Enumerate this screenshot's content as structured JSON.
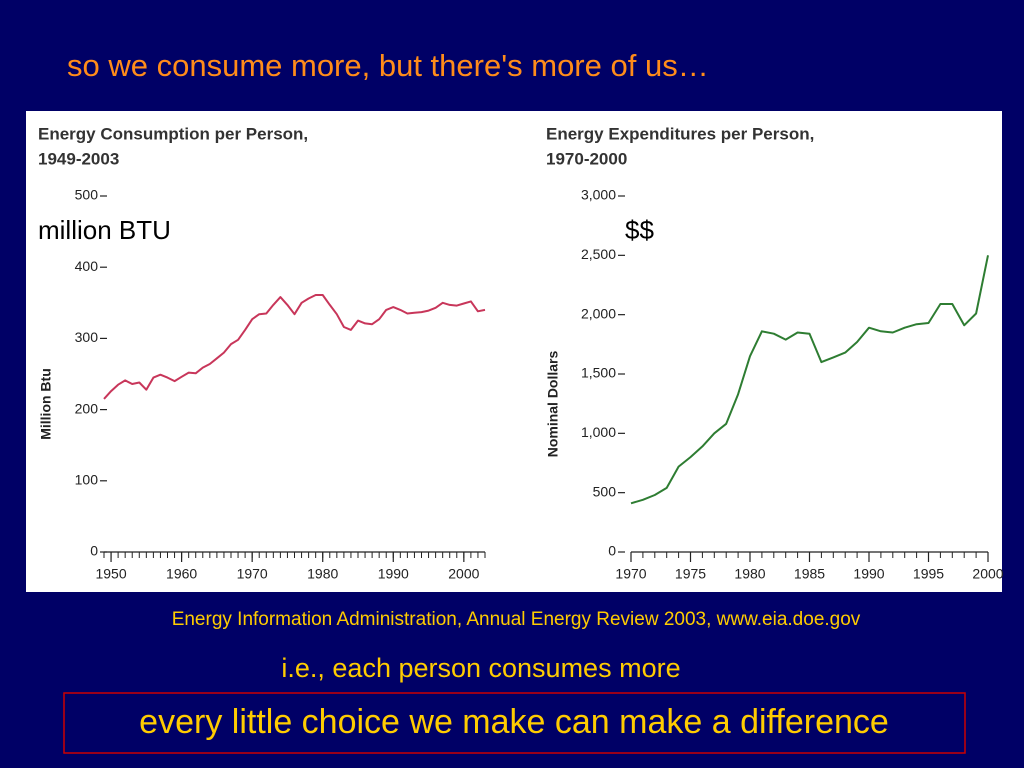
{
  "slide": {
    "title": "so we consume more, but there's more of us…",
    "source": "Energy Information Administration, Annual Energy Review 2003, www.eia.doe.gov",
    "note": "i.e., each person consumes more",
    "highlight": "every little choice we make can make a difference"
  },
  "chart_data": [
    {
      "type": "line",
      "title": "Energy Consumption per Person,",
      "subtitle": "1949-2003",
      "ylabel": "Million Btu",
      "annotation": "million BTU",
      "color": "#c8365a",
      "x": [
        1949,
        1950,
        1951,
        1952,
        1953,
        1954,
        1955,
        1956,
        1957,
        1958,
        1959,
        1960,
        1961,
        1962,
        1963,
        1964,
        1965,
        1966,
        1967,
        1968,
        1969,
        1970,
        1971,
        1972,
        1973,
        1974,
        1975,
        1976,
        1977,
        1978,
        1979,
        1980,
        1981,
        1982,
        1983,
        1984,
        1985,
        1986,
        1987,
        1988,
        1989,
        1990,
        1991,
        1992,
        1993,
        1994,
        1995,
        1996,
        1997,
        1998,
        1999,
        2000,
        2001,
        2002,
        2003
      ],
      "values": [
        215,
        226,
        235,
        241,
        236,
        238,
        228,
        245,
        249,
        245,
        240,
        246,
        252,
        251,
        259,
        264,
        272,
        280,
        292,
        298,
        312,
        327,
        334,
        335,
        347,
        358,
        347,
        334,
        350,
        356,
        361,
        361,
        347,
        334,
        316,
        312,
        325,
        321,
        320,
        327,
        340,
        344,
        340,
        335,
        336,
        337,
        339,
        343,
        350,
        347,
        346,
        349,
        352,
        338,
        340
      ],
      "xlim": [
        1949,
        2003
      ],
      "xticks": [
        1950,
        1960,
        1970,
        1980,
        1990,
        2000
      ],
      "ylim": [
        0,
        500
      ],
      "yticks": [
        0,
        100,
        200,
        300,
        400,
        500
      ]
    },
    {
      "type": "line",
      "title": "Energy Expenditures per Person,",
      "subtitle": "1970-2000",
      "ylabel": "Nominal Dollars",
      "annotation": "$$",
      "color": "#2e7d32",
      "x": [
        1970,
        1971,
        1972,
        1973,
        1974,
        1975,
        1976,
        1977,
        1978,
        1979,
        1980,
        1981,
        1982,
        1983,
        1984,
        1985,
        1986,
        1987,
        1988,
        1989,
        1990,
        1991,
        1992,
        1993,
        1994,
        1995,
        1996,
        1997,
        1998,
        1999,
        2000
      ],
      "values": [
        410,
        440,
        480,
        540,
        720,
        800,
        890,
        1000,
        1080,
        1330,
        1650,
        1860,
        1840,
        1790,
        1850,
        1840,
        1600,
        1640,
        1680,
        1770,
        1890,
        1860,
        1850,
        1890,
        1920,
        1930,
        2090,
        2090,
        1910,
        2010,
        2500
      ],
      "xlim": [
        1970,
        2000
      ],
      "xticks": [
        1970,
        1975,
        1980,
        1985,
        1990,
        1995,
        2000
      ],
      "ylim": [
        0,
        3000
      ],
      "yticks": [
        0,
        500,
        {
          "value": 1000,
          "label": "1,000"
        },
        {
          "value": 1500,
          "label": "1,500"
        },
        {
          "value": 2000,
          "label": "2,000"
        },
        {
          "value": 2500,
          "label": "2,500"
        },
        {
          "value": 3000,
          "label": "3,000"
        }
      ]
    }
  ]
}
